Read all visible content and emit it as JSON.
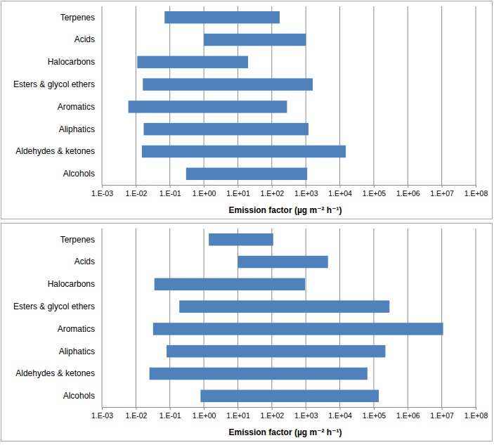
{
  "chart_data": [
    {
      "type": "bar",
      "orientation": "horizontal",
      "log": "x",
      "grid": true,
      "color": "#4f81bd",
      "x_label": "Emission factor (µg m⁻² h⁻¹)",
      "categories": [
        "Terpenes",
        "Acids",
        "Halocarbons",
        "Esters & glycol ethers",
        "Aromatics",
        "Aliphatics",
        "Aldehydes & ketones",
        "Alcohols"
      ],
      "values": [
        [
          0.07,
          170
        ],
        [
          1.0,
          1000
        ],
        [
          0.011,
          20
        ],
        [
          0.016,
          1600
        ],
        [
          0.006,
          280
        ],
        [
          0.017,
          1200
        ],
        [
          0.015,
          15000
        ],
        [
          0.3,
          1100
        ]
      ],
      "xlim": [
        0.001,
        100000000
      ],
      "xticks": [
        {
          "value": 0.001,
          "label": "1.E-03"
        },
        {
          "value": 0.01,
          "label": "1.E-02"
        },
        {
          "value": 0.1,
          "label": "1.E-01"
        },
        {
          "value": 1,
          "label": "1.E+00"
        },
        {
          "value": 10,
          "label": "1.E+01"
        },
        {
          "value": 100,
          "label": "1.E+02"
        },
        {
          "value": 1000,
          "label": "1.E+03"
        },
        {
          "value": 10000,
          "label": "1.E+04"
        },
        {
          "value": 100000,
          "label": "1.E+05"
        },
        {
          "value": 1000000,
          "label": "1.E+06"
        },
        {
          "value": 10000000,
          "label": "1.E+07"
        },
        {
          "value": 100000000,
          "label": "1.E+08"
        }
      ]
    },
    {
      "type": "bar",
      "orientation": "horizontal",
      "log": "x",
      "grid": true,
      "color": "#4f81bd",
      "x_label": "Emission factor (µg m⁻² h⁻¹)",
      "categories": [
        "Terpenes",
        "Acids",
        "Halocarbons",
        "Esters & glycol ethers",
        "Aromatics",
        "Aliphatics",
        "Aldehydes & ketones",
        "Alcohols"
      ],
      "values": [
        [
          1.4,
          110
        ],
        [
          10,
          4500
        ],
        [
          0.035,
          950
        ],
        [
          0.19,
          290000
        ],
        [
          0.032,
          11000000
        ],
        [
          0.08,
          220000
        ],
        [
          0.025,
          65000
        ],
        [
          0.8,
          140000
        ]
      ],
      "xlim": [
        0.001,
        100000000
      ],
      "xticks": [
        {
          "value": 0.001,
          "label": "1.E-03"
        },
        {
          "value": 0.01,
          "label": "1.E-02"
        },
        {
          "value": 0.1,
          "label": "1.E-01"
        },
        {
          "value": 1,
          "label": "1.E+00"
        },
        {
          "value": 10,
          "label": "1.E+01"
        },
        {
          "value": 100,
          "label": "1.E+02"
        },
        {
          "value": 1000,
          "label": "1.E+03"
        },
        {
          "value": 10000,
          "label": "1.E+04"
        },
        {
          "value": 100000,
          "label": "1.E+05"
        },
        {
          "value": 1000000,
          "label": "1.E+06"
        },
        {
          "value": 10000000,
          "label": "1.E+07"
        },
        {
          "value": 100000000,
          "label": "1.E+08"
        }
      ]
    }
  ]
}
